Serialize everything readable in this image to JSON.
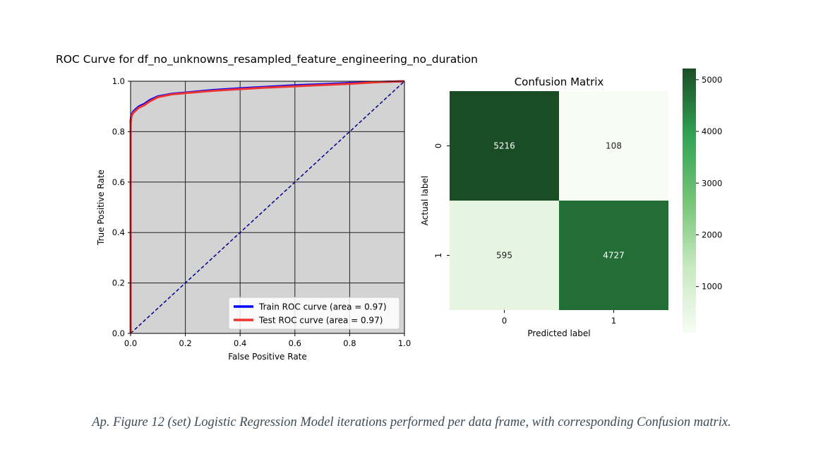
{
  "caption": "Ap. Figure 12 (set) Logistic Regression Model iterations performed per data frame, with corresponding Confusion matrix.",
  "chart_data": [
    {
      "type": "line",
      "title": "ROC Curve for df_no_unknowns_resampled_feature_engineering_no_duration",
      "xlabel": "False Positive Rate",
      "ylabel": "True Positive Rate",
      "xlim": [
        0,
        1
      ],
      "ylim": [
        0,
        1
      ],
      "xticks": [
        "0.0",
        "0.2",
        "0.4",
        "0.6",
        "0.8",
        "1.0"
      ],
      "yticks": [
        "0.0",
        "0.2",
        "0.4",
        "0.6",
        "0.8",
        "1.0"
      ],
      "grid": true,
      "legend_position": "lower-right",
      "series": [
        {
          "name": "Train ROC curve (area = 0.97)",
          "color": "#0000ff",
          "x": [
            0,
            0.0,
            0.002,
            0.005,
            0.01,
            0.02,
            0.03,
            0.05,
            0.07,
            0.1,
            0.15,
            0.2,
            0.3,
            0.4,
            0.5,
            0.6,
            0.7,
            0.8,
            0.9,
            1.0
          ],
          "y": [
            0,
            0.84,
            0.86,
            0.87,
            0.88,
            0.89,
            0.9,
            0.91,
            0.925,
            0.94,
            0.95,
            0.955,
            0.965,
            0.972,
            0.978,
            0.984,
            0.988,
            0.993,
            0.997,
            1.0
          ]
        },
        {
          "name": "Test ROC curve (area = 0.97)",
          "color": "#ee3333",
          "x": [
            0,
            0.0,
            0.002,
            0.005,
            0.01,
            0.02,
            0.03,
            0.05,
            0.07,
            0.1,
            0.15,
            0.2,
            0.3,
            0.4,
            0.5,
            0.6,
            0.7,
            0.8,
            0.9,
            1.0
          ],
          "y": [
            0,
            0.83,
            0.855,
            0.865,
            0.875,
            0.885,
            0.895,
            0.905,
            0.92,
            0.937,
            0.948,
            0.953,
            0.962,
            0.969,
            0.975,
            0.98,
            0.985,
            0.99,
            0.996,
            1.0
          ]
        },
        {
          "name": "",
          "color": "#00008b",
          "style": "dashed",
          "x": [
            0,
            1
          ],
          "y": [
            0,
            1
          ]
        }
      ]
    },
    {
      "type": "heatmap",
      "title": "Confusion Matrix",
      "xlabel": "Predicted label",
      "ylabel": "Actual label",
      "xticks": [
        "0",
        "1"
      ],
      "yticks": [
        "0",
        "1"
      ],
      "values": [
        [
          5216,
          108
        ],
        [
          595,
          4727
        ]
      ],
      "colormap": "Greens",
      "colorbar_range": [
        108,
        5216
      ],
      "colorbar_ticks": [
        "1000",
        "2000",
        "3000",
        "4000",
        "5000"
      ]
    }
  ]
}
